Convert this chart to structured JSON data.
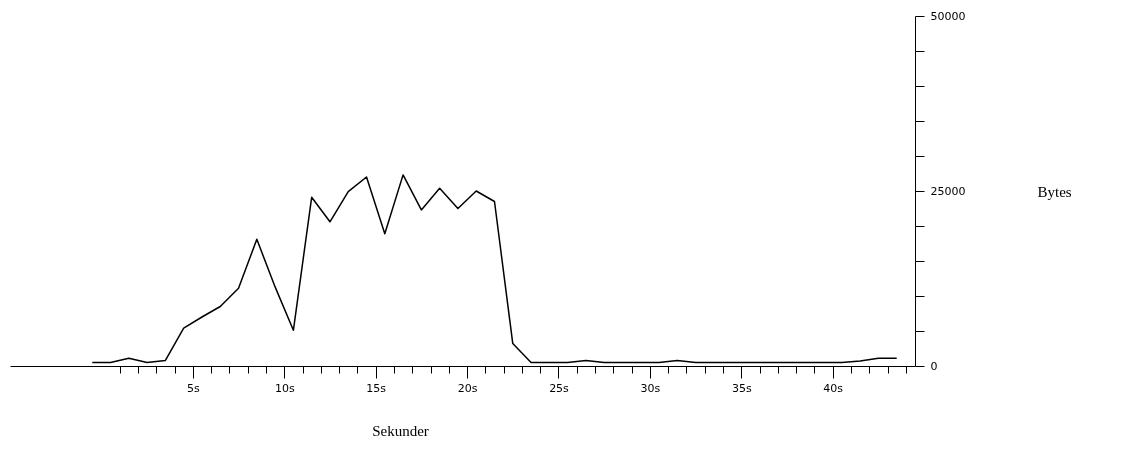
{
  "chart_data": {
    "type": "line",
    "xlabel": "Sekunder",
    "ylabel": "Bytes",
    "x": [
      -0.5,
      0.5,
      1.5,
      2.5,
      3.5,
      4.5,
      5.5,
      6.5,
      7.5,
      8.5,
      9.5,
      10.5,
      11.5,
      12.5,
      13.5,
      14.5,
      15.5,
      16.5,
      17.5,
      18.5,
      19.5,
      20.5,
      21.5,
      22.5,
      23.5,
      24.5,
      25.5,
      26.5,
      27.5,
      28.5,
      29.5,
      30.5,
      31.5,
      32.5,
      33.5,
      34.5,
      35.5,
      36.5,
      37.5,
      38.5,
      39.5,
      40.5,
      41.5,
      42.5,
      43.5
    ],
    "series": [
      {
        "color": "#000000",
        "values": [
          500,
          500,
          1100,
          500,
          800,
          5400,
          7000,
          8500,
          11100,
          18100,
          11300,
          5100,
          24100,
          20600,
          24900,
          27000,
          18900,
          27300,
          22300,
          25400,
          22500,
          25000,
          23500,
          3200,
          500,
          500,
          500,
          800,
          500,
          500,
          500,
          500,
          800,
          500,
          500,
          500,
          500,
          500,
          500,
          500,
          500,
          500,
          700,
          1100,
          1100
        ]
      }
    ],
    "xlim": [
      -5,
      44.5
    ],
    "xticks": [
      {
        "value": 1,
        "label": null
      },
      {
        "value": 2,
        "label": null
      },
      {
        "value": 3,
        "label": null
      },
      {
        "value": 4,
        "label": null
      },
      {
        "value": 5,
        "label": "5s"
      },
      {
        "value": 6,
        "label": null
      },
      {
        "value": 7,
        "label": null
      },
      {
        "value": 8,
        "label": null
      },
      {
        "value": 9,
        "label": null
      },
      {
        "value": 10,
        "label": "10s"
      },
      {
        "value": 11,
        "label": null
      },
      {
        "value": 12,
        "label": null
      },
      {
        "value": 13,
        "label": null
      },
      {
        "value": 14,
        "label": null
      },
      {
        "value": 15,
        "label": "15s"
      },
      {
        "value": 16,
        "label": null
      },
      {
        "value": 17,
        "label": null
      },
      {
        "value": 18,
        "label": null
      },
      {
        "value": 19,
        "label": null
      },
      {
        "value": 20,
        "label": "20s"
      },
      {
        "value": 21,
        "label": null
      },
      {
        "value": 22,
        "label": null
      },
      {
        "value": 23,
        "label": null
      },
      {
        "value": 24,
        "label": null
      },
      {
        "value": 25,
        "label": "25s"
      },
      {
        "value": 26,
        "label": null
      },
      {
        "value": 27,
        "label": null
      },
      {
        "value": 28,
        "label": null
      },
      {
        "value": 29,
        "label": null
      },
      {
        "value": 30,
        "label": "30s"
      },
      {
        "value": 31,
        "label": null
      },
      {
        "value": 32,
        "label": null
      },
      {
        "value": 33,
        "label": null
      },
      {
        "value": 34,
        "label": null
      },
      {
        "value": 35,
        "label": "35s"
      },
      {
        "value": 36,
        "label": null
      },
      {
        "value": 37,
        "label": null
      },
      {
        "value": 38,
        "label": null
      },
      {
        "value": 39,
        "label": null
      },
      {
        "value": 40,
        "label": "40s"
      },
      {
        "value": 41,
        "label": null
      },
      {
        "value": 42,
        "label": null
      },
      {
        "value": 43,
        "label": null
      },
      {
        "value": 44,
        "label": null
      }
    ],
    "ylim": [
      0,
      50000
    ],
    "yticks": [
      0,
      {
        "value": 5000,
        "label": null
      },
      {
        "value": 10000,
        "label": null
      },
      {
        "value": 15000,
        "label": null
      },
      {
        "value": 20000,
        "label": null
      },
      25000,
      {
        "value": 30000,
        "label": null
      },
      {
        "value": 35000,
        "label": null
      },
      {
        "value": 40000,
        "label": null
      },
      {
        "value": 45000,
        "label": null
      },
      50000
    ],
    "grid": false,
    "marker": "none",
    "line_style": "solid"
  }
}
